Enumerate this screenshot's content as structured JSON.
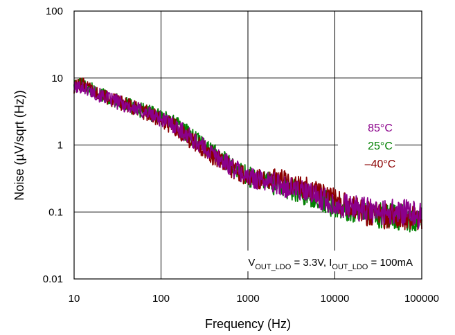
{
  "chart_data": {
    "type": "line",
    "title": "",
    "xlabel": "Frequency (Hz)",
    "ylabel": "Noise (µV/sqrt (Hz))",
    "xscale": "log",
    "yscale": "log",
    "xlim": [
      10,
      100000
    ],
    "ylim": [
      0.01,
      100
    ],
    "grid": true,
    "x_ticks": [
      "10",
      "100",
      "1000",
      "10000",
      "100000"
    ],
    "y_ticks": [
      "0.01",
      "0.1",
      "1",
      "10",
      "100"
    ],
    "annotation": {
      "v_main": "V",
      "v_sub": "OUT_LDO",
      "v_value": " = 3.3V, ",
      "i_main": "I",
      "i_sub": "OUT_LDO",
      "i_value": " = 100mA"
    },
    "legend_placement": "right",
    "series": [
      {
        "name": "85°C",
        "color": "#8B008B",
        "x": [
          10,
          12,
          15,
          20,
          30,
          50,
          70,
          100,
          150,
          200,
          300,
          500,
          700,
          1000,
          1500,
          2000,
          3000,
          5000,
          7000,
          10000,
          15000,
          20000,
          30000,
          50000,
          70000,
          100000
        ],
        "y": [
          7,
          7.5,
          6.5,
          5.5,
          4.5,
          3.5,
          3.0,
          2.5,
          1.9,
          1.4,
          0.95,
          0.6,
          0.45,
          0.33,
          0.3,
          0.27,
          0.23,
          0.19,
          0.16,
          0.13,
          0.12,
          0.11,
          0.1,
          0.1,
          0.095,
          0.09
        ]
      },
      {
        "name": "25°C",
        "color": "#008000",
        "x": [
          10,
          12,
          15,
          20,
          30,
          50,
          70,
          100,
          150,
          200,
          300,
          500,
          700,
          1000,
          1500,
          2000,
          3000,
          5000,
          7000,
          10000,
          15000,
          20000,
          30000,
          50000,
          70000,
          100000
        ],
        "y": [
          7.5,
          8,
          7,
          5.8,
          4.6,
          3.6,
          3.1,
          2.6,
          2.0,
          1.5,
          1.0,
          0.62,
          0.45,
          0.34,
          0.29,
          0.26,
          0.22,
          0.18,
          0.15,
          0.12,
          0.11,
          0.1,
          0.09,
          0.085,
          0.08,
          0.08
        ]
      },
      {
        "name": "–40°C",
        "color": "#8B0000",
        "x": [
          10,
          12,
          15,
          20,
          30,
          50,
          70,
          100,
          150,
          200,
          300,
          500,
          700,
          1000,
          1500,
          2000,
          3000,
          5000,
          7000,
          10000,
          15000,
          20000,
          30000,
          50000,
          70000,
          100000
        ],
        "y": [
          7.2,
          8.5,
          6.8,
          5.6,
          4.5,
          3.5,
          3.0,
          2.4,
          1.8,
          1.3,
          0.9,
          0.55,
          0.42,
          0.32,
          0.31,
          0.33,
          0.28,
          0.22,
          0.18,
          0.15,
          0.12,
          0.1,
          0.09,
          0.085,
          0.08,
          0.075
        ]
      }
    ]
  }
}
